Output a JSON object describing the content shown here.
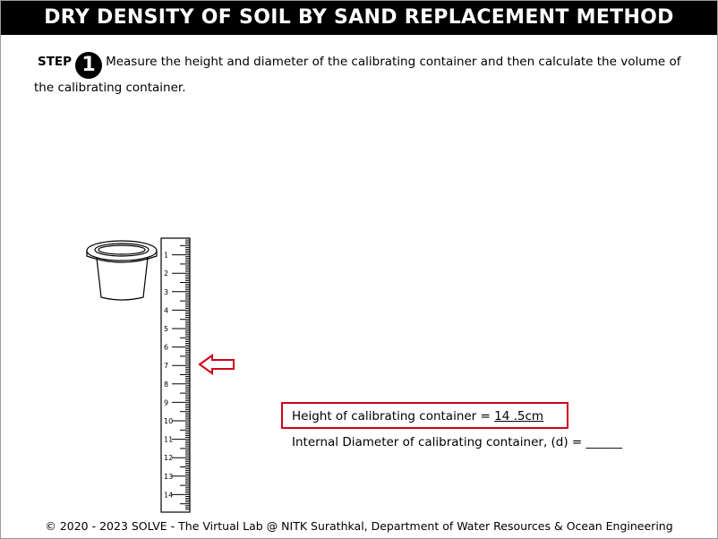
{
  "header": {
    "title": "DRY DENSITY OF SOIL BY SAND REPLACEMENT METHOD"
  },
  "step": {
    "label": "STEP",
    "number": "1",
    "instruction": "Measure the height and diameter of the calibrating container and then calculate the volume of the calibrating container."
  },
  "ruler": {
    "labels": [
      "1",
      "2",
      "3",
      "4",
      "5",
      "6",
      "7",
      "8",
      "9",
      "10",
      "11",
      "12",
      "13",
      "14"
    ]
  },
  "results": {
    "height_label": "Height of calibrating container = ",
    "height_value": "14 .5cm",
    "diameter_label": "Internal Diameter of calibrating container, (d) = ",
    "diameter_value": "______"
  },
  "footer": {
    "text": "© 2020 - 2023 SOLVE - The Virtual Lab @ NITK Surathkal, Department of Water Resources & Ocean Engineering"
  },
  "colors": {
    "highlight": "#d0021b",
    "header_bg": "#000000"
  }
}
